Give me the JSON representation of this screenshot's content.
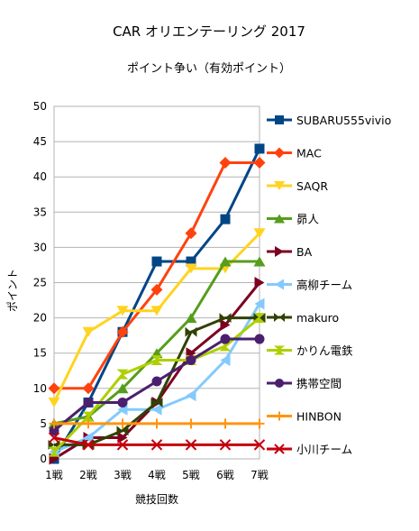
{
  "chart_data": {
    "type": "line",
    "title": "CAR オリエンテーリング 2017",
    "subtitle": "ポイント争い（有効ポイント）",
    "xlabel": "競技回数",
    "ylabel": "ポイント",
    "ylim": [
      0,
      50
    ],
    "ytick_step": 5,
    "grid": "horizontal",
    "legend_position": "right",
    "categories": [
      "1戦",
      "2戦",
      "3戦",
      "4戦",
      "5戦",
      "6戦",
      "7戦"
    ],
    "series": [
      {
        "name": "SUBARU555vivio",
        "color": "#004586",
        "marker": "square",
        "values": [
          0,
          8,
          18,
          28,
          28,
          34,
          44
        ]
      },
      {
        "name": "MAC",
        "color": "#ff420e",
        "marker": "diamond",
        "values": [
          10,
          10,
          18,
          24,
          32,
          42,
          42
        ]
      },
      {
        "name": "SAQR",
        "color": "#ffd320",
        "marker": "triangle-down",
        "values": [
          8,
          18,
          21,
          21,
          27,
          27,
          32
        ]
      },
      {
        "name": "昴人",
        "color": "#579d1c",
        "marker": "triangle-up",
        "values": [
          5,
          6,
          10,
          15,
          20,
          28,
          28
        ]
      },
      {
        "name": "BA",
        "color": "#7e0021",
        "marker": "triangle-right",
        "values": [
          0,
          3,
          3,
          8,
          15,
          19,
          25
        ]
      },
      {
        "name": "高柳チーム",
        "color": "#83caff",
        "marker": "triangle-left",
        "values": [
          1,
          3,
          7,
          7,
          9,
          14,
          22
        ]
      },
      {
        "name": "makuro",
        "color": "#314004",
        "marker": "bowtie",
        "values": [
          2,
          2,
          4,
          8,
          18,
          20,
          20
        ]
      },
      {
        "name": "かりん電鉄",
        "color": "#aecf00",
        "marker": "hourglass",
        "values": [
          1,
          6,
          12,
          14,
          14,
          16,
          20
        ]
      },
      {
        "name": "携帯空間",
        "color": "#4b1f6f",
        "marker": "circle",
        "values": [
          4,
          8,
          8,
          11,
          14,
          17,
          17
        ]
      },
      {
        "name": "HINBON",
        "color": "#ff950e",
        "marker": "plus",
        "values": [
          5,
          5,
          5,
          5,
          5,
          5,
          5
        ]
      },
      {
        "name": "小川チーム",
        "color": "#c5000b",
        "marker": "x",
        "values": [
          3,
          2,
          2,
          2,
          2,
          2,
          2
        ]
      }
    ]
  }
}
